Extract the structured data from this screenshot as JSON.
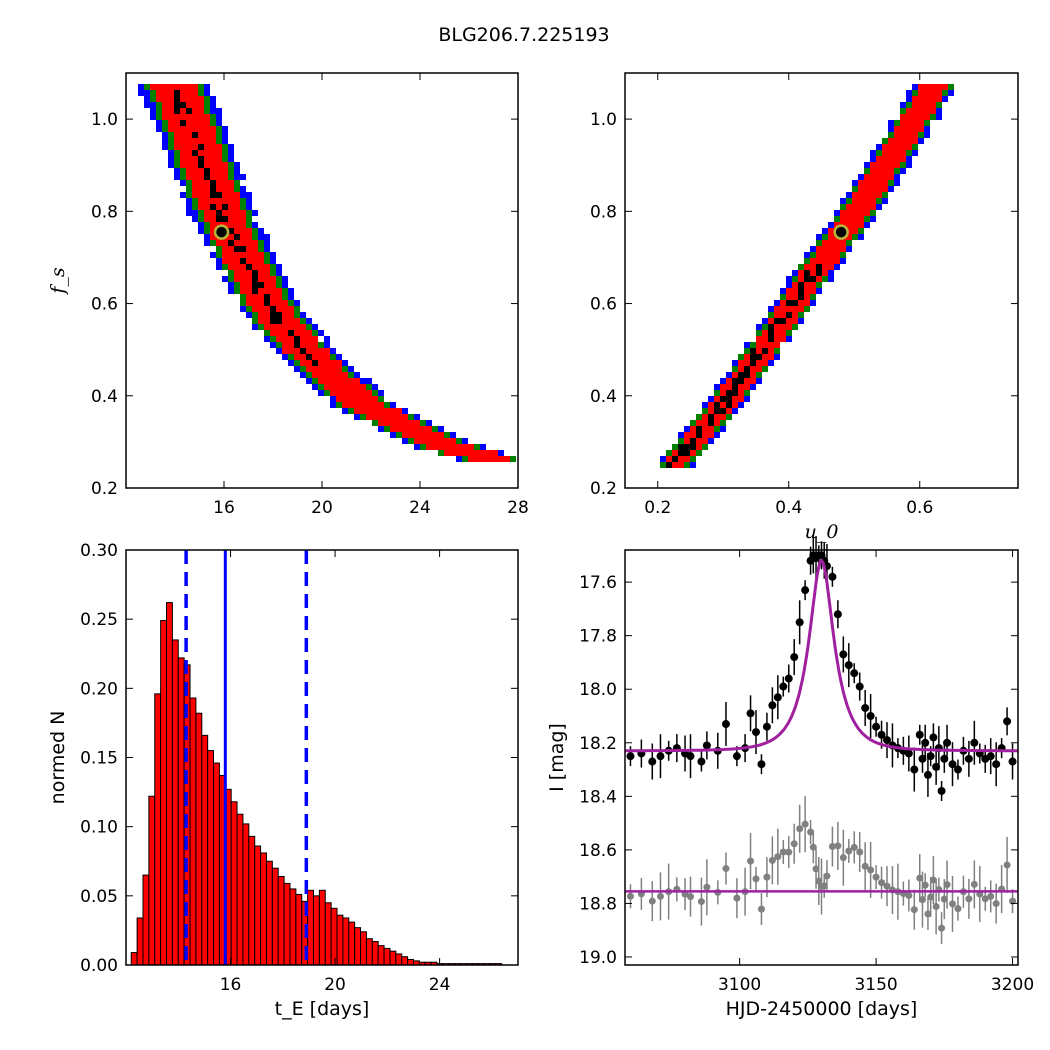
{
  "figure_title": "BLG206.7.225193",
  "colors": {
    "blue": "#0000ff",
    "green": "#008000",
    "red": "#ff0000",
    "black": "#000000",
    "marker_edge": "#b8b43a",
    "bar": "#ff0000",
    "model": "#a020a0",
    "residual": "#808080"
  },
  "chart_data": [
    {
      "id": "fs_vs_tE",
      "type": "heatmap",
      "xlabel": "",
      "ylabel": "f_s",
      "xlim": [
        12,
        28
      ],
      "ylim": [
        0.2,
        1.1
      ],
      "xticks": [
        16,
        20,
        24,
        28
      ],
      "yticks": [
        0.2,
        0.4,
        0.6,
        0.8,
        1.0
      ],
      "xtick_labels": [
        "16",
        "20",
        "24",
        "28"
      ],
      "ytick_labels": [
        "0.2",
        "0.4",
        "0.6",
        "0.8",
        "1.0"
      ],
      "best_fit": {
        "x": 15.9,
        "y": 0.755
      },
      "ridge": [
        [
          13.9,
          1.08
        ],
        [
          14.5,
          1.0
        ],
        [
          15.2,
          0.9
        ],
        [
          15.9,
          0.8
        ],
        [
          16.8,
          0.7
        ],
        [
          17.8,
          0.6
        ],
        [
          19.0,
          0.52
        ],
        [
          20.3,
          0.45
        ],
        [
          21.6,
          0.39
        ],
        [
          23.0,
          0.35
        ],
        [
          24.5,
          0.31
        ],
        [
          26.0,
          0.28
        ],
        [
          27.0,
          0.27
        ]
      ],
      "contour_levels": [
        "blue",
        "green",
        "red",
        "black"
      ]
    },
    {
      "id": "fs_vs_u0",
      "type": "heatmap",
      "xlabel": "u_0",
      "ylabel": "",
      "xlim": [
        0.15,
        0.75
      ],
      "ylim": [
        0.2,
        1.1
      ],
      "xticks": [
        0.2,
        0.4,
        0.6
      ],
      "yticks": [
        0.2,
        0.4,
        0.6,
        0.8,
        1.0
      ],
      "xtick_labels": [
        "0.2",
        "0.4",
        "0.6"
      ],
      "ytick_labels": [
        "0.2",
        "0.4",
        "0.6",
        "0.8",
        "1.0"
      ],
      "best_fit": {
        "x": 0.48,
        "y": 0.755
      },
      "ridge": [
        [
          0.225,
          0.26
        ],
        [
          0.26,
          0.32
        ],
        [
          0.3,
          0.39
        ],
        [
          0.34,
          0.47
        ],
        [
          0.38,
          0.55
        ],
        [
          0.42,
          0.64
        ],
        [
          0.46,
          0.72
        ],
        [
          0.5,
          0.8
        ],
        [
          0.54,
          0.89
        ],
        [
          0.58,
          0.98
        ],
        [
          0.62,
          1.08
        ]
      ],
      "contour_levels": [
        "blue",
        "green",
        "red",
        "black"
      ]
    },
    {
      "id": "tE_hist",
      "type": "bar",
      "xlabel": "t_E  [days]",
      "ylabel": "normed N",
      "xlim": [
        12,
        27
      ],
      "ylim": [
        0.0,
        0.3
      ],
      "xticks": [
        16,
        20,
        24
      ],
      "yticks": [
        0.0,
        0.05,
        0.1,
        0.15,
        0.2,
        0.25,
        0.3
      ],
      "xtick_labels": [
        "16",
        "20",
        "24"
      ],
      "ytick_labels": [
        "0.00",
        "0.05",
        "0.10",
        "0.15",
        "0.20",
        "0.25",
        "0.30"
      ],
      "bin_start": 12.2,
      "bin_width": 0.225,
      "values": [
        0.009,
        0.034,
        0.065,
        0.122,
        0.196,
        0.249,
        0.262,
        0.235,
        0.222,
        0.217,
        0.193,
        0.182,
        0.166,
        0.155,
        0.146,
        0.137,
        0.127,
        0.118,
        0.109,
        0.102,
        0.093,
        0.086,
        0.081,
        0.075,
        0.07,
        0.064,
        0.059,
        0.055,
        0.051,
        0.046,
        0.054,
        0.05,
        0.054,
        0.045,
        0.041,
        0.036,
        0.034,
        0.031,
        0.027,
        0.024,
        0.019,
        0.017,
        0.014,
        0.012,
        0.01,
        0.008,
        0.006,
        0.004,
        0.003,
        0.002,
        0.002,
        0.002,
        0.001,
        0.001,
        0.001,
        0.001,
        0.001,
        0.001,
        0.001,
        0.001,
        0.001,
        0.001,
        0.001,
        0.0
      ],
      "median": 15.8,
      "lower": 14.3,
      "upper": 18.9
    },
    {
      "id": "lightcurve",
      "type": "scatter",
      "xlabel": "HJD-2450000 [days]",
      "ylabel": "I [mag]",
      "xlim": [
        3058,
        3202
      ],
      "ylim": [
        19.03,
        17.48
      ],
      "xticks": [
        3100,
        3150,
        3200
      ],
      "yticks": [
        17.6,
        17.8,
        18.0,
        18.2,
        18.4,
        18.6,
        18.8,
        19.0
      ],
      "xtick_labels": [
        "3100",
        "3150",
        "3200"
      ],
      "ytick_labels": [
        "17.6",
        "17.8",
        "18.0",
        "18.2",
        "18.4",
        "18.6",
        "18.8",
        "19.0"
      ],
      "model": {
        "baseline": 18.23,
        "peak_mag": 17.52,
        "t0": 3130,
        "tE": 15.9,
        "u0": 0.48
      },
      "residual_baseline": 18.755,
      "data_x": [
        3060,
        3064,
        3068,
        3071,
        3074,
        3077,
        3080,
        3082,
        3086,
        3088,
        3092,
        3095,
        3099,
        3102,
        3104,
        3106,
        3108,
        3110,
        3112,
        3114,
        3116,
        3118,
        3120,
        3122,
        3124,
        3126,
        3127,
        3128,
        3129,
        3130,
        3131,
        3132,
        3134,
        3136,
        3138,
        3140,
        3142,
        3144,
        3146,
        3148,
        3150,
        3152,
        3154,
        3156,
        3158,
        3160,
        3162,
        3164,
        3166,
        3167,
        3168,
        3169,
        3170,
        3171,
        3172,
        3173,
        3174,
        3175,
        3176,
        3178,
        3180,
        3182,
        3184,
        3186,
        3188,
        3190,
        3192,
        3194,
        3196,
        3198,
        3200
      ],
      "data_mag": [
        18.25,
        18.24,
        18.27,
        18.25,
        18.23,
        18.22,
        18.24,
        18.25,
        18.27,
        18.21,
        18.23,
        18.13,
        18.25,
        18.22,
        18.09,
        18.16,
        18.28,
        18.14,
        18.06,
        18.03,
        17.99,
        17.96,
        17.88,
        17.75,
        17.63,
        17.52,
        17.5,
        17.51,
        17.5,
        17.5,
        17.52,
        17.54,
        17.58,
        17.72,
        17.87,
        17.91,
        17.94,
        17.99,
        18.07,
        18.1,
        18.14,
        18.17,
        18.19,
        18.21,
        18.22,
        18.23,
        18.24,
        18.3,
        18.17,
        18.26,
        18.2,
        18.32,
        18.25,
        18.18,
        18.29,
        18.22,
        18.38,
        18.26,
        18.2,
        18.28,
        18.3,
        18.23,
        18.26,
        18.2,
        18.24,
        18.26,
        18.25,
        18.28,
        18.22,
        18.12,
        18.27
      ]
    }
  ]
}
